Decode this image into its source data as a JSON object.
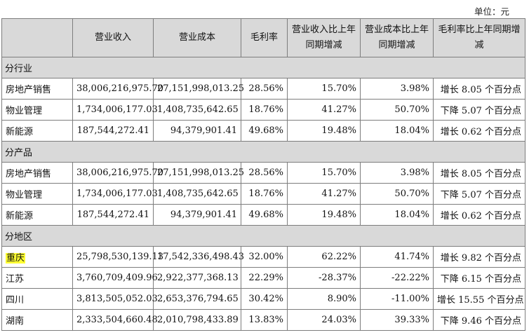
{
  "unit_label": "单位：元",
  "headers": [
    "",
    "营业收入",
    "营业成本",
    "毛利率",
    "营业收入比上年同期增减",
    "营业成本比上年同期增减",
    "毛利率比上年同期增减"
  ],
  "sections": [
    {
      "title": "分行业",
      "rows": [
        {
          "name": "房地产销售",
          "revenue": "38,006,216,975.70",
          "cost": "27,151,998,013.25",
          "margin": "28.56%",
          "rev_change": "15.70%",
          "cost_change": "3.98%",
          "margin_change": "增长 8.05 个百分点",
          "highlight": false
        },
        {
          "name": "物业管理",
          "revenue": "1,734,006,177.03",
          "cost": "1,408,735,642.65",
          "margin": "18.76%",
          "rev_change": "41.27%",
          "cost_change": "50.70%",
          "margin_change": "下降 5.07 个百分点",
          "highlight": false
        },
        {
          "name": "新能源",
          "revenue": "187,544,272.41",
          "cost": "94,379,901.41",
          "margin": "49.68%",
          "rev_change": "19.48%",
          "cost_change": "18.04%",
          "margin_change": "增长 0.62 个百分点",
          "highlight": false
        }
      ]
    },
    {
      "title": "分产品",
      "rows": [
        {
          "name": "房地产销售",
          "revenue": "38,006,216,975.70",
          "cost": "27,151,998,013.25",
          "margin": "28.56%",
          "rev_change": "15.70%",
          "cost_change": "3.98%",
          "margin_change": "增长 8.05 个百分点",
          "highlight": false
        },
        {
          "name": "物业管理",
          "revenue": "1,734,006,177.03",
          "cost": "1,408,735,642.65",
          "margin": "18.76%",
          "rev_change": "41.27%",
          "cost_change": "50.70%",
          "margin_change": "下降 5.07 个百分点",
          "highlight": false
        },
        {
          "name": "新能源",
          "revenue": "187,544,272.41",
          "cost": "94,379,901.41",
          "margin": "49.68%",
          "rev_change": "19.48%",
          "cost_change": "18.04%",
          "margin_change": "增长 0.62 个百分点",
          "highlight": false
        }
      ]
    },
    {
      "title": "分地区",
      "rows": [
        {
          "name": "重庆",
          "revenue": "25,798,530,139.13",
          "cost": "17,542,336,498.43",
          "margin": "32.00%",
          "rev_change": "62.22%",
          "cost_change": "41.74%",
          "margin_change": "增长 9.82 个百分点",
          "highlight": true
        },
        {
          "name": "江苏",
          "revenue": "3,760,709,409.96",
          "cost": "2,922,377,368.13",
          "margin": "22.29%",
          "rev_change": "-28.37%",
          "cost_change": "-22.22%",
          "margin_change": "下降 6.15 个百分点",
          "highlight": false
        },
        {
          "name": "四川",
          "revenue": "3,813,505,052.03",
          "cost": "2,653,376,794.65",
          "margin": "30.42%",
          "rev_change": "8.90%",
          "cost_change": "-11.00%",
          "margin_change": "增长 15.55 个百分点",
          "highlight": false
        },
        {
          "name": "湖南",
          "revenue": "2,333,504,660.48",
          "cost": "2,010,798,433.89",
          "margin": "13.83%",
          "rev_change": "24.03%",
          "cost_change": "39.33%",
          "margin_change": "下降 9.46 个百分点",
          "highlight": false
        }
      ]
    }
  ],
  "colors": {
    "header_bg": "#d9d9d9",
    "highlight": "#ffff33",
    "border": "#7d7d7d"
  }
}
